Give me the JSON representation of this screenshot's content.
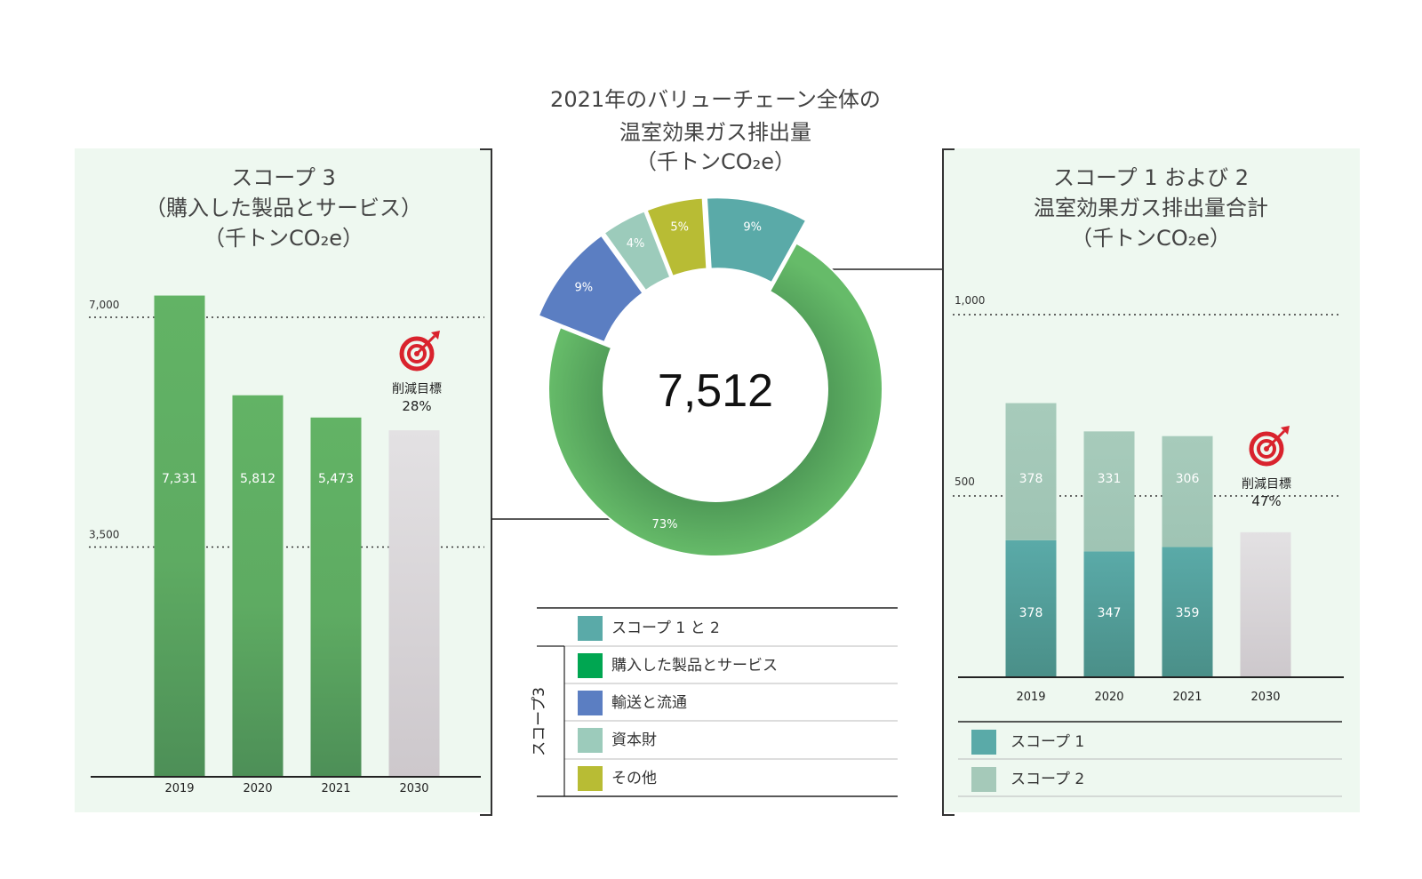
{
  "center": {
    "title_line1": "2021年のバリューチェーン全体の",
    "title_line2": "温室効果ガス排出量",
    "title_line3": "（千トンCO₂e）",
    "total": "7,512"
  },
  "left": {
    "title_line1": "スコープ 3",
    "title_line2": "（購入した製品とサービス）",
    "title_line3": "（千トンCO₂e）",
    "target_label": "削減目標",
    "target_value": "28%"
  },
  "right": {
    "title_line1": "スコープ 1 および 2",
    "title_line2": "温室効果ガス排出量合計",
    "title_line3": "（千トンCO₂e）",
    "target_label": "削減目標",
    "target_value": "47%"
  },
  "center_legend": {
    "group_label": "スコープ3",
    "items": [
      {
        "label": "スコープ 1 と 2",
        "color": "#5aaaa8"
      },
      {
        "label": "購入した製品とサービス",
        "color": "#00a651"
      },
      {
        "label": "輸送と流通",
        "color": "#5b7ec2"
      },
      {
        "label": "資本財",
        "color": "#9ccbbb"
      },
      {
        "label": "その他",
        "color": "#b8bc34"
      }
    ]
  },
  "right_legend": {
    "items": [
      {
        "label": "スコープ 1",
        "color": "#5aaaa8"
      },
      {
        "label": "スコープ 2",
        "color": "#a5c9b9"
      }
    ]
  },
  "colors": {
    "panel_bg": "#eef8f0",
    "green_bar": "#62b365",
    "green_bar_dark": "#4d8f57",
    "target_bar": "#dedcde",
    "scope1": "#5aaaa8",
    "scope2": "#a5c9b9",
    "target_icon": "#d9232d"
  },
  "chart_data": [
    {
      "type": "bar",
      "categories": [
        "2019",
        "2020",
        "2021",
        "2030"
      ],
      "values": [
        7331,
        5812,
        5473,
        5278
      ],
      "data_labels": [
        "7,331",
        "5,812",
        "5,473",
        ""
      ],
      "ylim": [
        0,
        7500
      ],
      "yticks": [
        3500,
        7000
      ],
      "ytick_labels": [
        "3,500",
        "7,000"
      ],
      "grid": "dotted"
    },
    {
      "type": "pie",
      "slices": [
        {
          "label": "購入した製品とサービス",
          "value": 73,
          "display": "73%"
        },
        {
          "label": "輸送と流通",
          "value": 9,
          "display": "9%"
        },
        {
          "label": "資本財",
          "value": 4,
          "display": "4%"
        },
        {
          "label": "その他",
          "value": 5,
          "display": "5%"
        },
        {
          "label": "スコープ 1 と 2",
          "value": 9,
          "display": "9%"
        }
      ]
    },
    {
      "type": "bar",
      "stacked": true,
      "categories": [
        "2019",
        "2020",
        "2021",
        "2030"
      ],
      "series": [
        {
          "name": "スコープ 1",
          "values": [
            378,
            347,
            359,
            null
          ],
          "labels": [
            "378",
            "347",
            "359",
            ""
          ]
        },
        {
          "name": "スコープ 2",
          "values": [
            378,
            331,
            306,
            null
          ],
          "labels": [
            "378",
            "331",
            "306",
            ""
          ]
        },
        {
          "name": "",
          "values": [
            null,
            null,
            null,
            400
          ],
          "labels": [
            "",
            "",
            "",
            ""
          ]
        }
      ],
      "ylim": [
        0,
        1100
      ],
      "yticks": [
        500,
        1000
      ],
      "ytick_labels": [
        "500",
        "1,000"
      ],
      "grid": "dotted"
    }
  ]
}
